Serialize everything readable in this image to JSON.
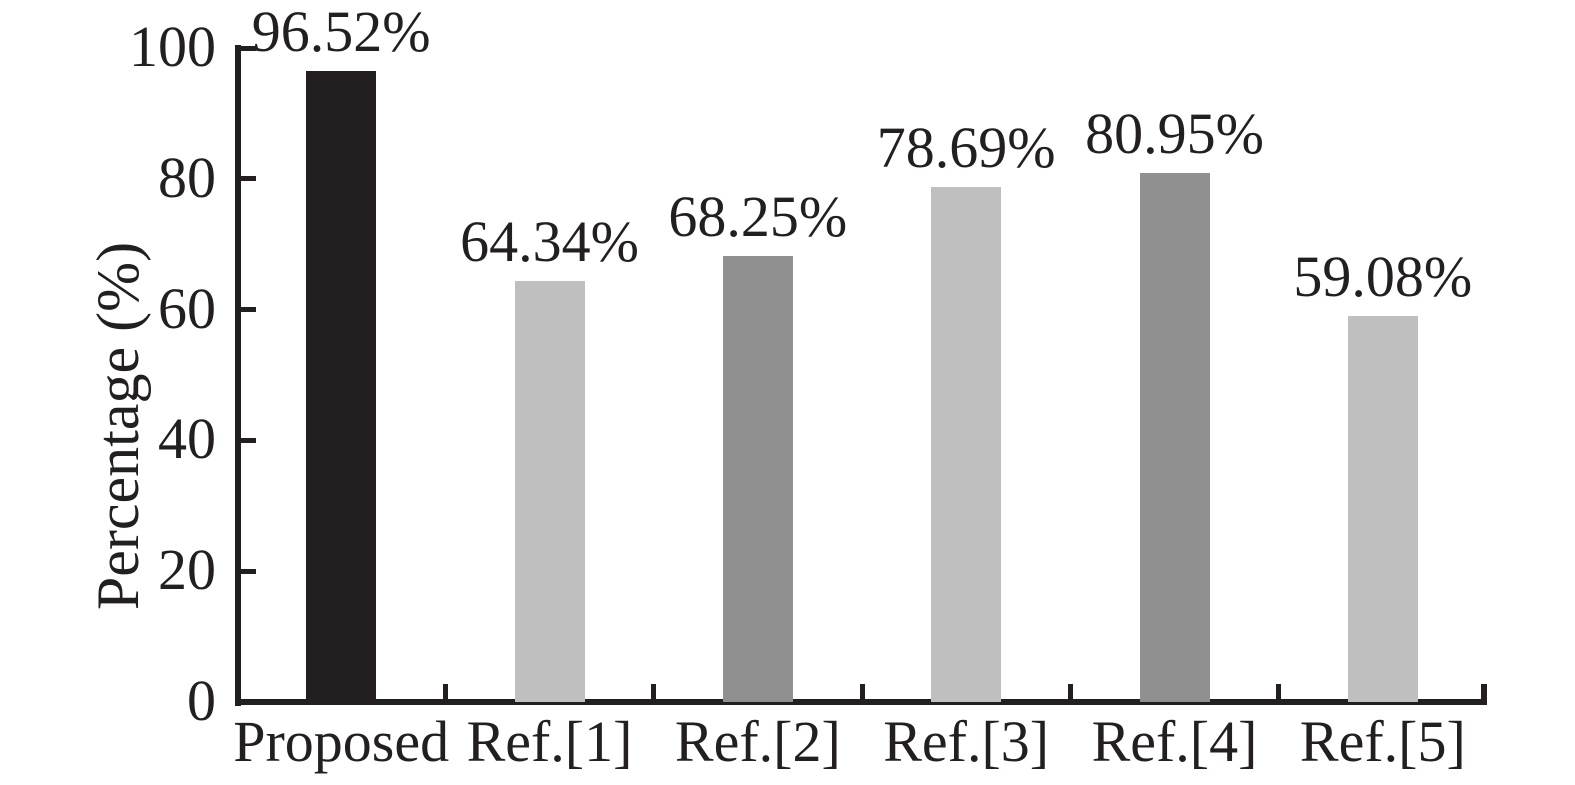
{
  "chart_data": {
    "type": "bar",
    "title": "",
    "categories": [
      "Proposed",
      "Ref.[1]",
      "Ref.[2]",
      "Ref.[3]",
      "Ref.[4]",
      "Ref.[5]"
    ],
    "values": [
      96.52,
      64.34,
      68.25,
      78.69,
      80.95,
      59.08
    ],
    "value_labels": [
      "96.52%",
      "64.34%",
      "68.25%",
      "78.69%",
      "80.95%",
      "59.08%"
    ],
    "bar_colors": [
      "#231f20",
      "#bfbfbf",
      "#909090",
      "#bfbfbf",
      "#909090",
      "#bfbfbf"
    ],
    "xlabel": "",
    "ylabel": "Percentage (%)",
    "ylim": [
      0,
      100
    ],
    "yticks": [
      0,
      20,
      40,
      60,
      80,
      100
    ],
    "ytick_labels": [
      "0",
      "20",
      "40",
      "60",
      "80",
      "100"
    ],
    "grid": false,
    "legend_position": "none",
    "axis_color": "#231f20",
    "background_color": "#ffffff"
  }
}
